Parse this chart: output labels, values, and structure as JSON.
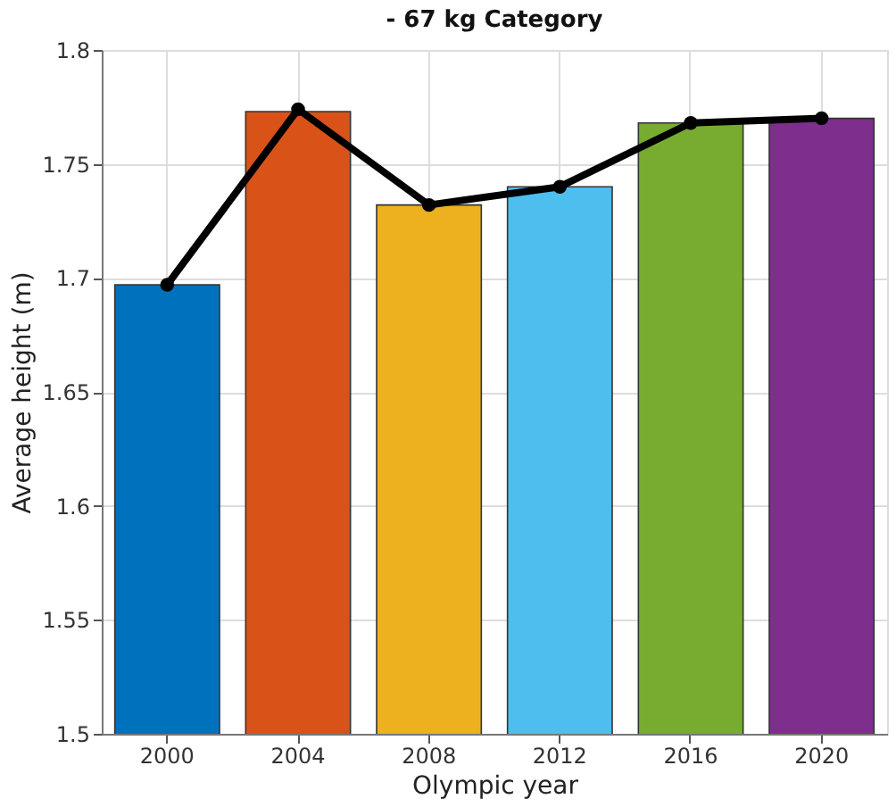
{
  "chart_data": {
    "type": "bar",
    "title": "- 67 kg Category",
    "xlabel": "Olympic year",
    "ylabel": "Average height (m)",
    "categories": [
      "2000",
      "2004",
      "2008",
      "2012",
      "2016",
      "2020"
    ],
    "series": [
      {
        "colors": [
          "#0072bd",
          "#d95319",
          "#edb120",
          "#4dbeee",
          "#77ac30",
          "#7e2f8e"
        ],
        "values": [
          1.697,
          1.773,
          1.732,
          1.74,
          1.768,
          1.77
        ]
      },
      {
        "type": "line",
        "color": "#000000",
        "marker": "circle",
        "line_style": "solid",
        "values": [
          1.697,
          1.774,
          1.732,
          1.74,
          1.768,
          1.77
        ]
      }
    ],
    "ylim": [
      1.5,
      1.8
    ],
    "yticks": [
      1.5,
      1.55,
      1.6,
      1.65,
      1.7,
      1.75,
      1.8
    ],
    "grid": true
  }
}
